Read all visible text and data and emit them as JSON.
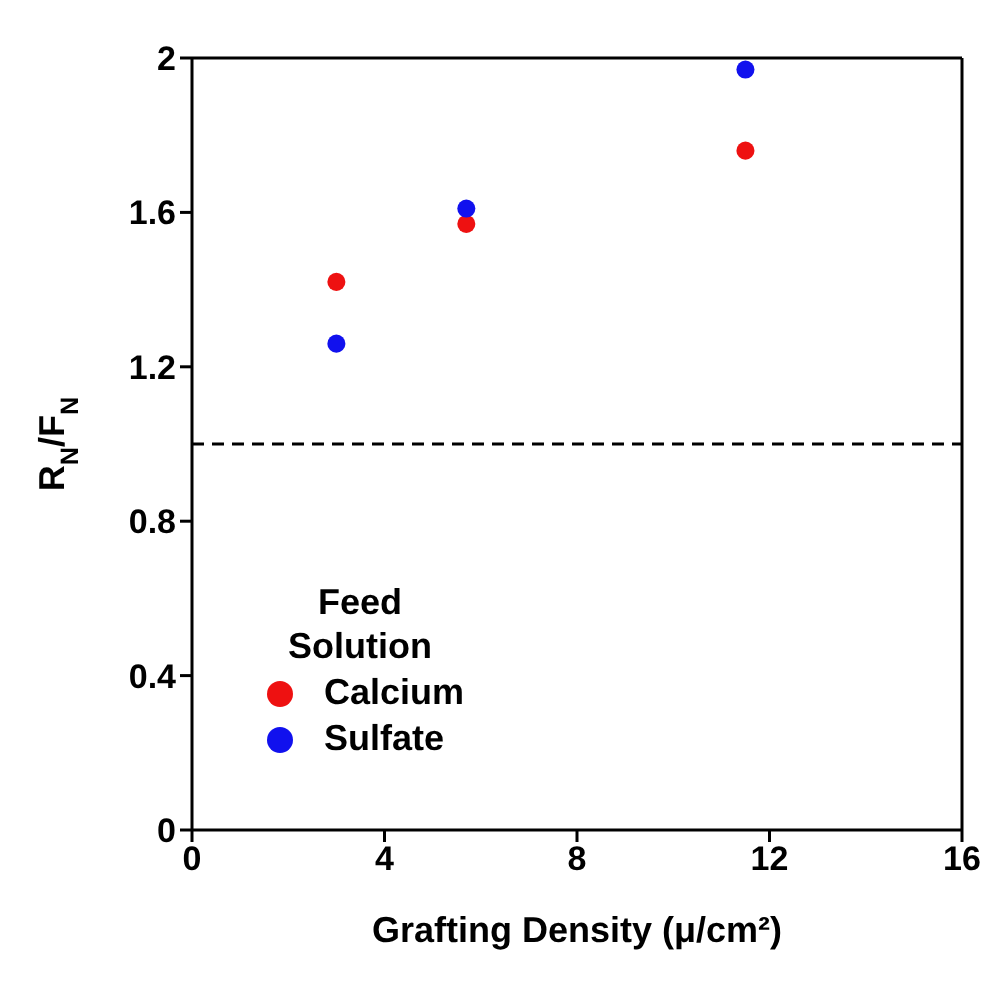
{
  "chart_data": {
    "type": "scatter",
    "xlabel": "Grafting Density (μ/cm²)",
    "ylabel": "R$_{N}$/F$_{N}$",
    "legend_title": "Feed Solution",
    "x": [
      3.0,
      5.7,
      11.5
    ],
    "series": [
      {
        "name": "Calcium",
        "color": "#ee1111",
        "values": [
          1.42,
          1.57,
          1.76
        ]
      },
      {
        "name": "Sulfate",
        "color": "#1111ee",
        "values": [
          1.26,
          1.61,
          1.97
        ]
      }
    ],
    "xlim": [
      0,
      16
    ],
    "xticks": [
      0,
      4,
      8,
      12,
      16
    ],
    "ylim": [
      0,
      2
    ],
    "yticks": [
      0,
      0.4,
      0.8,
      1.2,
      1.6,
      2
    ],
    "ref_lines": [
      {
        "axis": "y",
        "value": 1,
        "color": "#000000",
        "line_style": "dashed"
      }
    ],
    "legend": "bottom left",
    "marker": "circle"
  }
}
